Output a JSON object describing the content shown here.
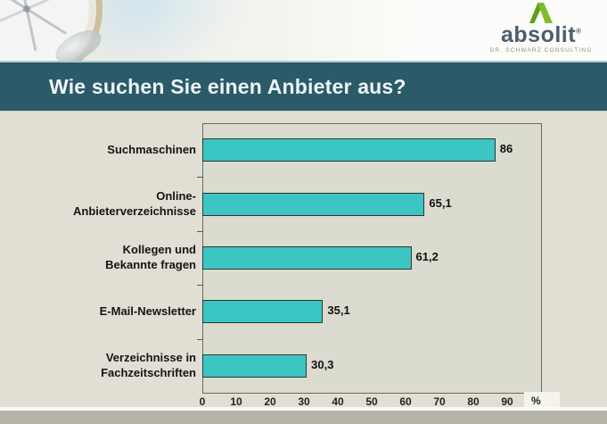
{
  "slide": {
    "title": "Wie suchen Sie einen Anbieter aus?"
  },
  "logo": {
    "name": "absolit",
    "reg": "®",
    "tagline": "DR. SCHWARZ CONSULTING"
  },
  "chart_data": {
    "type": "bar",
    "orientation": "horizontal",
    "title": "Wie suchen Sie einen Anbieter aus?",
    "categories": [
      "Suchmaschinen",
      "Online-\nAnbieterverzeichnisse",
      "Kollegen und\nBekannte fragen",
      "E-Mail-Newsletter",
      "Verzeichnisse in\nFachzeitschriften"
    ],
    "values": [
      86,
      65.1,
      61.2,
      35.1,
      30.3
    ],
    "value_labels": [
      "86",
      "65,1",
      "61,2",
      "35,1",
      "30,3"
    ],
    "x_ticks": [
      0,
      10,
      20,
      30,
      40,
      50,
      60,
      70,
      80,
      90
    ],
    "x_unit": "%",
    "xlim": [
      0,
      100
    ],
    "grid": false,
    "legend": false,
    "bar_color": "#3bc6c4",
    "bar_border_color": "#333333"
  },
  "colors": {
    "title_bar": "#2b5a68",
    "title_text": "#edf6fa",
    "slide_bg": "#e1dfd3",
    "plot_bg": "#dcdbcf",
    "logo_green": "#7cbd28",
    "logo_text": "#4e5d6a",
    "footer_gray": "#b6b3a8"
  }
}
